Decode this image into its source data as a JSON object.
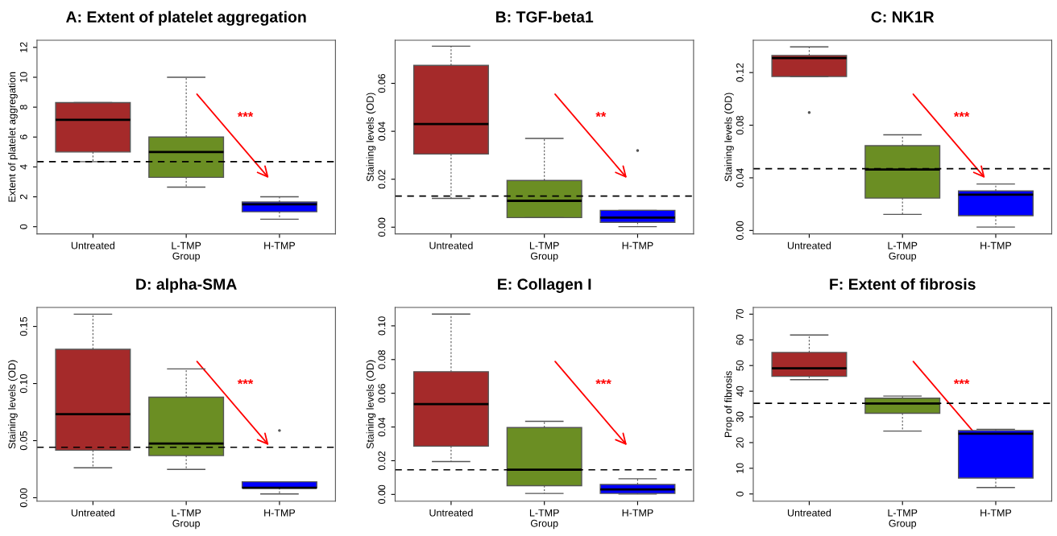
{
  "chart_data": [
    {
      "type": "box",
      "title": "A: Extent of platelet aggregation",
      "xlabel": "Group",
      "ylabel": "Extent of platelet aggregation",
      "categories": [
        "Untreated",
        "L-TMP",
        "H-TMP"
      ],
      "colors": [
        "#a52a2a",
        "#6b8e23",
        "#0000ff"
      ],
      "boxes": [
        {
          "low": 4.35,
          "q1": 5.0,
          "median": 7.15,
          "q3": 8.3,
          "high": 8.3
        },
        {
          "low": 2.65,
          "q1": 3.3,
          "median": 5.0,
          "q3": 6.0,
          "high": 10.0
        },
        {
          "low": 0.5,
          "q1": 1.0,
          "median": 1.5,
          "q3": 1.65,
          "high": 2.0
        }
      ],
      "ylim": [
        -0.48,
        12.48
      ],
      "yticks": [
        0,
        2,
        4,
        6,
        8,
        10,
        12
      ],
      "ref_lines": [
        {
          "axis": "y",
          "value": 4.35,
          "line_style": "dashed",
          "color": "#000000"
        }
      ],
      "annotations": [
        "***"
      ],
      "grid": false
    },
    {
      "type": "box",
      "title": "B: TGF-beta1",
      "xlabel": "Group",
      "ylabel": "Staining levels (OD)",
      "categories": [
        "Untreated",
        "L-TMP",
        "H-TMP"
      ],
      "colors": [
        "#a52a2a",
        "#6b8e23",
        "#0000ff"
      ],
      "boxes": [
        {
          "low": 0.012,
          "q1": 0.0305,
          "median": 0.043,
          "q3": 0.0675,
          "high": 0.0755
        },
        {
          "low": 0.004,
          "q1": 0.004,
          "median": 0.011,
          "q3": 0.0195,
          "high": 0.037
        },
        {
          "low": 0.0002,
          "q1": 0.002,
          "median": 0.004,
          "q3": 0.007,
          "high": 0.007,
          "outliers": [
            0.032
          ]
        }
      ],
      "ylim": [
        -0.0028,
        0.078
      ],
      "yticks": [
        {
          "value": 0,
          "label": "0.00"
        },
        {
          "value": 0.02,
          "label": "0.02"
        },
        {
          "value": 0.04,
          "label": "0.04"
        },
        {
          "value": 0.06,
          "label": "0.06"
        }
      ],
      "ref_lines": [
        {
          "axis": "y",
          "value": 0.013,
          "line_style": "dashed",
          "color": "#000000"
        }
      ],
      "annotations": [
        "**"
      ],
      "grid": false
    },
    {
      "type": "box",
      "title": "C: NK1R",
      "xlabel": "Group",
      "ylabel": "Staining levels (OD)",
      "categories": [
        "Untreated",
        "L-TMP",
        "H-TMP"
      ],
      "colors": [
        "#a52a2a",
        "#6b8e23",
        "#0000ff"
      ],
      "boxes": [
        {
          "low": 0.117,
          "q1": 0.117,
          "median": 0.131,
          "q3": 0.133,
          "high": 0.1395,
          "outliers": [
            0.0897
          ]
        },
        {
          "low": 0.0122,
          "q1": 0.0246,
          "median": 0.0463,
          "q3": 0.0644,
          "high": 0.0727
        },
        {
          "low": 0.0026,
          "q1": 0.0112,
          "median": 0.0272,
          "q3": 0.03,
          "high": 0.0353
        }
      ],
      "ylim": [
        -0.0026,
        0.1446
      ],
      "yticks": [
        {
          "value": 0,
          "label": "0.00"
        },
        {
          "value": 0.04,
          "label": "0.04"
        },
        {
          "value": 0.08,
          "label": "0.08"
        },
        {
          "value": 0.12,
          "label": "0.12"
        }
      ],
      "ref_lines": [
        {
          "axis": "y",
          "value": 0.0469,
          "line_style": "dashed",
          "color": "#000000"
        }
      ],
      "annotations": [
        "***"
      ],
      "grid": false
    },
    {
      "type": "box",
      "title": "D: alpha-SMA",
      "xlabel": "Group",
      "ylabel": "Staining levels (OD)",
      "categories": [
        "Untreated",
        "L-TMP",
        "H-TMP"
      ],
      "colors": [
        "#a52a2a",
        "#6b8e23",
        "#0000ff"
      ],
      "boxes": [
        {
          "low": 0.0262,
          "q1": 0.0416,
          "median": 0.0731,
          "q3": 0.13,
          "high": 0.1607
        },
        {
          "low": 0.0248,
          "q1": 0.0369,
          "median": 0.0474,
          "q3": 0.0881,
          "high": 0.1128
        },
        {
          "low": 0.0033,
          "q1": 0.0087,
          "median": 0.0087,
          "q3": 0.014,
          "high": 0.014,
          "outliers": [
            0.0589
          ]
        }
      ],
      "ylim": [
        -0.003,
        0.1666
      ],
      "yticks": [
        {
          "value": 0,
          "label": "0.00"
        },
        {
          "value": 0.05,
          "label": "0.05"
        },
        {
          "value": 0.1,
          "label": "0.10"
        },
        {
          "value": 0.15,
          "label": "0.15"
        }
      ],
      "ref_lines": [
        {
          "axis": "y",
          "value": 0.0442,
          "line_style": "dashed",
          "color": "#000000"
        }
      ],
      "annotations": [
        "***"
      ],
      "grid": false
    },
    {
      "type": "box",
      "title": "E: Collagen I",
      "xlabel": "Group",
      "ylabel": "Staining levels (OD)",
      "categories": [
        "Untreated",
        "L-TMP",
        "H-TMP"
      ],
      "colors": [
        "#a52a2a",
        "#6b8e23",
        "#0000ff"
      ],
      "boxes": [
        {
          "low": 0.0195,
          "q1": 0.0286,
          "median": 0.0536,
          "q3": 0.0728,
          "high": 0.107
        },
        {
          "low": 0.0006,
          "q1": 0.0052,
          "median": 0.0147,
          "q3": 0.0397,
          "high": 0.0434
        },
        {
          "low": 0.0002,
          "q1": 0.0006,
          "median": 0.003,
          "q3": 0.0059,
          "high": 0.0093
        }
      ],
      "ylim": [
        -0.004,
        0.1109
      ],
      "yticks": [
        {
          "value": 0,
          "label": "0.00"
        },
        {
          "value": 0.02,
          "label": "0.02"
        },
        {
          "value": 0.04,
          "label": "0.04"
        },
        {
          "value": 0.06,
          "label": "0.06"
        },
        {
          "value": 0.08,
          "label": "0.08"
        },
        {
          "value": 0.1,
          "label": "0.10"
        }
      ],
      "ref_lines": [
        {
          "axis": "y",
          "value": 0.0146,
          "line_style": "dashed",
          "color": "#000000"
        }
      ],
      "annotations": [
        "***"
      ],
      "grid": false
    },
    {
      "type": "box",
      "title": "F: Extent of fibrosis",
      "xlabel": "Group",
      "ylabel": "Prop of fibrosis",
      "categories": [
        "Untreated",
        "L-TMP",
        "H-TMP"
      ],
      "colors": [
        "#a52a2a",
        "#6b8e23",
        "#0000ff"
      ],
      "boxes": [
        {
          "low": 44.5,
          "q1": 45.8,
          "median": 48.9,
          "q3": 55.1,
          "high": 61.9
        },
        {
          "low": 24.5,
          "q1": 31.4,
          "median": 35.2,
          "q3": 37.3,
          "high": 38.1
        },
        {
          "low": 2.5,
          "q1": 6.2,
          "median": 23.5,
          "q3": 24.7,
          "high": 25.2
        }
      ],
      "ylim": [
        -2.8,
        72.6
      ],
      "yticks": [
        0,
        10,
        20,
        30,
        40,
        50,
        60,
        70
      ],
      "ref_lines": [
        {
          "axis": "y",
          "value": 35.3,
          "line_style": "dashed",
          "color": "#000000"
        }
      ],
      "annotations": [
        "***"
      ],
      "grid": false
    }
  ]
}
